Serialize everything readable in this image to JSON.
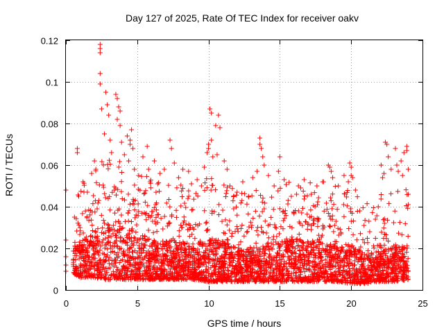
{
  "chart_data": {
    "type": "scatter",
    "title": "Day 127 of 2025, Rate Of TEC Index for receiver oakv",
    "xlabel": "GPS time / hours",
    "ylabel": "ROTI / TECUs",
    "xlim": [
      0,
      25
    ],
    "ylim": [
      0,
      0.12
    ],
    "xticks": [
      0,
      5,
      10,
      15,
      20,
      25
    ],
    "xtick_labels": [
      "0",
      "5",
      "10",
      "15",
      "20",
      "25"
    ],
    "yticks": [
      0,
      0.02,
      0.04,
      0.06,
      0.08,
      0.1,
      0.12
    ],
    "ytick_labels": [
      "0",
      "0.02",
      "0.04",
      "0.06",
      "0.08",
      "0.1",
      "0.12"
    ],
    "grid": true,
    "marker": "+",
    "series": [
      {
        "name": "ROTI",
        "color": "#ff0000",
        "points": [
          [
            0.0,
            0.048
          ],
          [
            0.0,
            0.024
          ],
          [
            0.0,
            0.016
          ],
          [
            0.0,
            0.012
          ],
          [
            0.0,
            0.009
          ],
          [
            0.6,
            0.035
          ],
          [
            0.8,
            0.068
          ],
          [
            0.8,
            0.066
          ],
          [
            0.9,
            0.045
          ],
          [
            1.2,
            0.052
          ],
          [
            1.5,
            0.047
          ],
          [
            1.8,
            0.056
          ],
          [
            2.0,
            0.062
          ],
          [
            2.1,
            0.058
          ],
          [
            2.4,
            0.118
          ],
          [
            2.4,
            0.116
          ],
          [
            2.4,
            0.114
          ],
          [
            2.4,
            0.104
          ],
          [
            2.4,
            0.099
          ],
          [
            2.5,
            0.087
          ],
          [
            2.7,
            0.075
          ],
          [
            2.8,
            0.095
          ],
          [
            2.9,
            0.089
          ],
          [
            3.0,
            0.084
          ],
          [
            3.1,
            0.072
          ],
          [
            3.2,
            0.066
          ],
          [
            3.5,
            0.094
          ],
          [
            3.6,
            0.092
          ],
          [
            3.6,
            0.082
          ],
          [
            3.7,
            0.088
          ],
          [
            3.8,
            0.086
          ],
          [
            3.8,
            0.079
          ],
          [
            3.9,
            0.071
          ],
          [
            4.1,
            0.065
          ],
          [
            4.3,
            0.074
          ],
          [
            4.4,
            0.062
          ],
          [
            4.5,
            0.072
          ],
          [
            4.5,
            0.07
          ],
          [
            4.6,
            0.077
          ],
          [
            4.7,
            0.068
          ],
          [
            4.8,
            0.058
          ],
          [
            5.1,
            0.055
          ],
          [
            5.4,
            0.064
          ],
          [
            5.7,
            0.069
          ],
          [
            5.8,
            0.058
          ],
          [
            5.9,
            0.052
          ],
          [
            6.2,
            0.062
          ],
          [
            6.6,
            0.056
          ],
          [
            6.9,
            0.058
          ],
          [
            7.3,
            0.072
          ],
          [
            7.4,
            0.068
          ],
          [
            7.6,
            0.061
          ],
          [
            7.9,
            0.054
          ],
          [
            8.2,
            0.058
          ],
          [
            8.6,
            0.057
          ],
          [
            8.8,
            0.051
          ],
          [
            9.2,
            0.053
          ],
          [
            9.5,
            0.05
          ],
          [
            9.7,
            0.059
          ],
          [
            9.9,
            0.066
          ],
          [
            10.0,
            0.07
          ],
          [
            10.0,
            0.068
          ],
          [
            10.1,
            0.087
          ],
          [
            10.2,
            0.085
          ],
          [
            10.2,
            0.072
          ],
          [
            10.3,
            0.064
          ],
          [
            10.5,
            0.079
          ],
          [
            10.6,
            0.065
          ],
          [
            10.7,
            0.084
          ],
          [
            10.8,
            0.078
          ],
          [
            11.1,
            0.062
          ],
          [
            11.3,
            0.058
          ],
          [
            11.5,
            0.05
          ],
          [
            12.0,
            0.047
          ],
          [
            12.4,
            0.052
          ],
          [
            12.8,
            0.045
          ],
          [
            13.1,
            0.054
          ],
          [
            13.4,
            0.057
          ],
          [
            13.6,
            0.073
          ],
          [
            13.6,
            0.07
          ],
          [
            13.7,
            0.068
          ],
          [
            13.8,
            0.064
          ],
          [
            13.9,
            0.06
          ],
          [
            14.2,
            0.055
          ],
          [
            14.6,
            0.05
          ],
          [
            14.9,
            0.057
          ],
          [
            15.0,
            0.064
          ],
          [
            15.3,
            0.053
          ],
          [
            15.8,
            0.045
          ],
          [
            16.3,
            0.05
          ],
          [
            16.7,
            0.053
          ],
          [
            17.2,
            0.046
          ],
          [
            17.6,
            0.05
          ],
          [
            18.0,
            0.052
          ],
          [
            18.4,
            0.06
          ],
          [
            18.5,
            0.059
          ],
          [
            18.6,
            0.057
          ],
          [
            18.7,
            0.054
          ],
          [
            19.1,
            0.05
          ],
          [
            19.5,
            0.055
          ],
          [
            19.8,
            0.052
          ],
          [
            19.9,
            0.061
          ],
          [
            20.0,
            0.059
          ],
          [
            20.0,
            0.055
          ],
          [
            20.1,
            0.054
          ],
          [
            20.3,
            0.048
          ],
          [
            20.6,
            0.038
          ],
          [
            20.9,
            0.031
          ],
          [
            21.3,
            0.028
          ],
          [
            21.7,
            0.034
          ],
          [
            21.9,
            0.04
          ],
          [
            22.1,
            0.06
          ],
          [
            22.2,
            0.054
          ],
          [
            22.3,
            0.056
          ],
          [
            22.4,
            0.071
          ],
          [
            22.5,
            0.07
          ],
          [
            22.6,
            0.064
          ],
          [
            22.8,
            0.058
          ],
          [
            23.1,
            0.068
          ],
          [
            23.2,
            0.06
          ],
          [
            23.3,
            0.057
          ],
          [
            23.5,
            0.062
          ],
          [
            23.6,
            0.055
          ],
          [
            23.7,
            0.066
          ],
          [
            23.9,
            0.069
          ],
          [
            23.9,
            0.067
          ],
          [
            24.0,
            0.058
          ],
          [
            24.0,
            0.046
          ],
          [
            24.0,
            0.041
          ]
        ],
        "envelope": {
          "description": "dense band of points",
          "x": [
            0.5,
            1.0,
            2.0,
            2.5,
            3.0,
            4.0,
            5.0,
            6.0,
            7.0,
            8.0,
            9.0,
            10.0,
            11.0,
            12.0,
            13.0,
            14.0,
            15.0,
            16.0,
            17.0,
            18.0,
            19.0,
            20.0,
            21.0,
            22.0,
            23.0,
            24.0
          ],
          "low": [
            0.008,
            0.006,
            0.006,
            0.005,
            0.005,
            0.005,
            0.005,
            0.005,
            0.005,
            0.005,
            0.005,
            0.004,
            0.004,
            0.004,
            0.004,
            0.004,
            0.004,
            0.004,
            0.004,
            0.004,
            0.004,
            0.003,
            0.003,
            0.004,
            0.004,
            0.005
          ],
          "high": [
            0.025,
            0.03,
            0.035,
            0.045,
            0.042,
            0.04,
            0.035,
            0.032,
            0.03,
            0.03,
            0.028,
            0.032,
            0.03,
            0.026,
            0.025,
            0.028,
            0.03,
            0.032,
            0.03,
            0.03,
            0.03,
            0.028,
            0.022,
            0.024,
            0.026,
            0.028
          ]
        }
      }
    ]
  }
}
